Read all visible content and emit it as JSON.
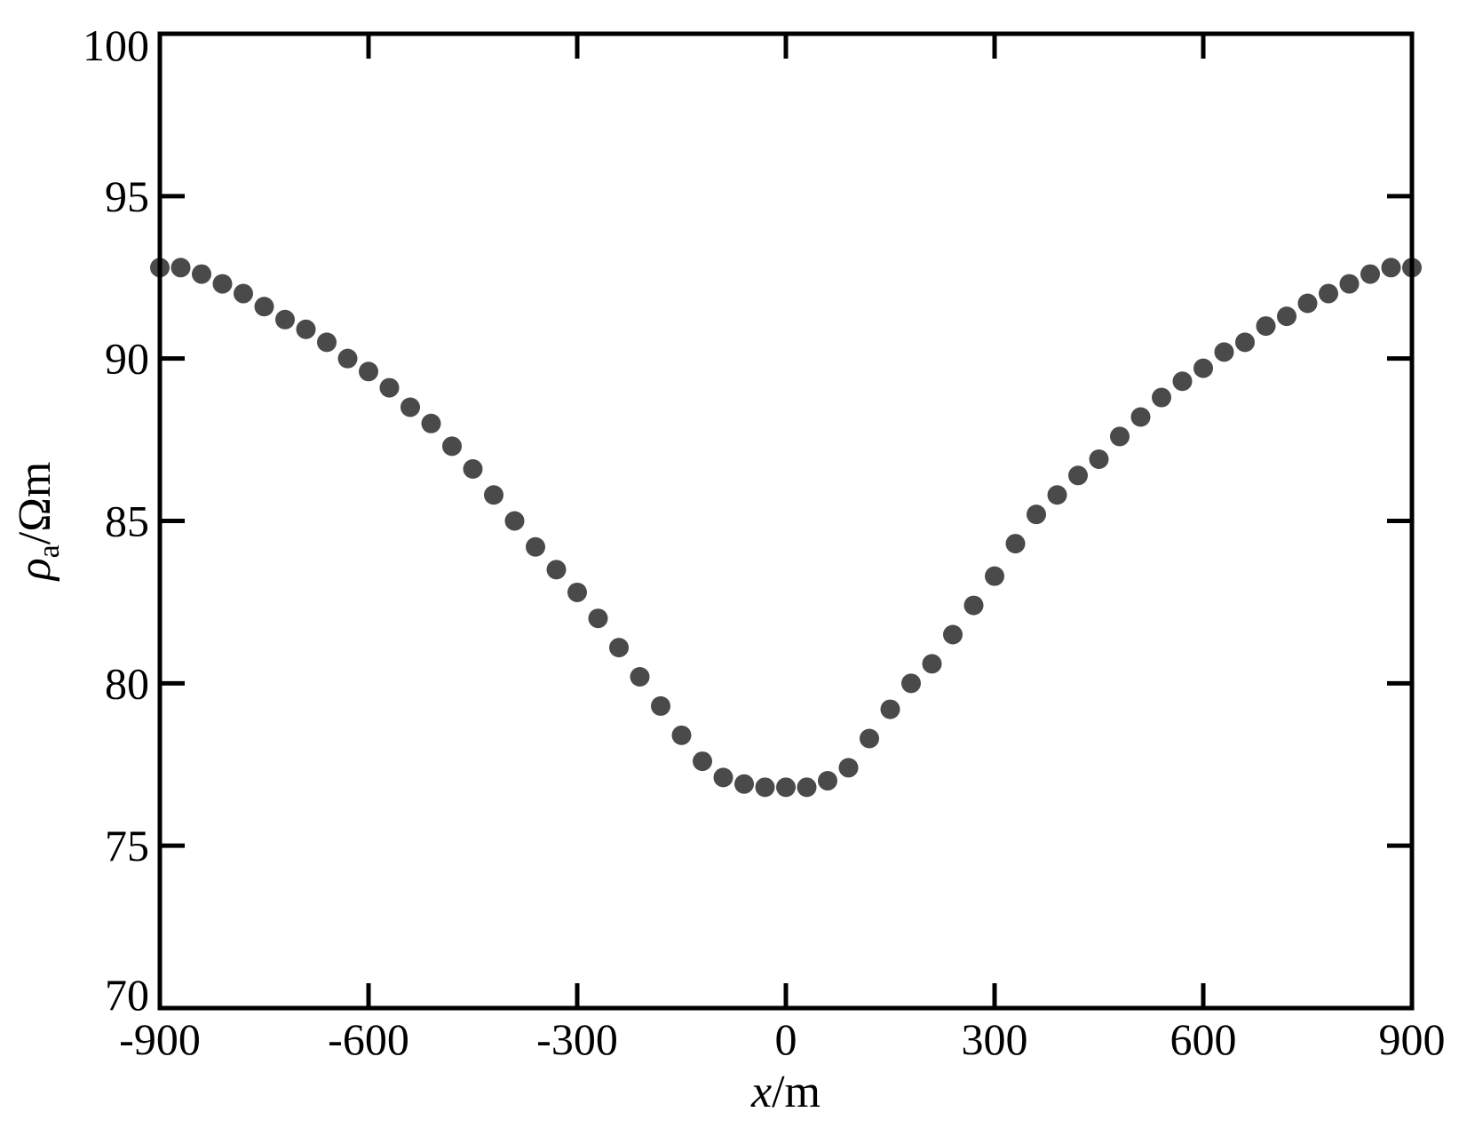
{
  "chart_data": {
    "type": "scatter",
    "xlabel": "x/m",
    "ylabel": "ρa/Ωm",
    "xlabel_var": "x",
    "xlabel_unit": "/m",
    "ylabel_var": "ρ",
    "ylabel_sub": "a",
    "ylabel_unit": "/Ωm",
    "xlim": [
      -900,
      900
    ],
    "ylim": [
      70,
      100
    ],
    "xticks": [
      -900,
      -600,
      -300,
      0,
      300,
      600,
      900
    ],
    "xtick_labels": [
      "-900",
      "-600",
      "-300",
      "0",
      "300",
      "600",
      "900"
    ],
    "yticks": [
      70,
      75,
      80,
      85,
      90,
      95,
      100
    ],
    "ytick_labels": [
      "70",
      "75",
      "80",
      "85",
      "90",
      "95",
      "100"
    ],
    "grid": false,
    "marker_color": "#4a4a4a",
    "series": [
      {
        "x": [
          -900,
          -870,
          -840,
          -810,
          -780,
          -750,
          -720,
          -690,
          -660,
          -630,
          -600,
          -570,
          -540,
          -510,
          -480,
          -450,
          -420,
          -390,
          -360,
          -330,
          -300,
          -270,
          -240,
          -210,
          -180,
          -150,
          -120,
          -90,
          -60,
          -30,
          0,
          30,
          60,
          90,
          120,
          150,
          180,
          210,
          240,
          270,
          300,
          330,
          360,
          390,
          420,
          450,
          480,
          510,
          540,
          570,
          600,
          630,
          660,
          690,
          720,
          750,
          780,
          810,
          840,
          870,
          900
        ],
        "y": [
          92.8,
          92.8,
          92.6,
          92.3,
          92.0,
          91.6,
          91.2,
          90.9,
          90.5,
          90.0,
          89.6,
          89.1,
          88.5,
          88.0,
          87.3,
          86.6,
          85.8,
          85.0,
          84.2,
          83.5,
          82.8,
          82.0,
          81.1,
          80.2,
          79.3,
          78.4,
          77.6,
          77.1,
          76.9,
          76.8,
          76.8,
          76.8,
          77.0,
          77.4,
          78.3,
          79.2,
          80.0,
          80.6,
          81.5,
          82.4,
          83.3,
          84.3,
          85.2,
          85.8,
          86.4,
          86.9,
          87.6,
          88.2,
          88.8,
          89.3,
          89.7,
          90.2,
          90.5,
          91.0,
          91.3,
          91.7,
          92.0,
          92.3,
          92.6,
          92.8,
          92.8
        ]
      }
    ]
  }
}
